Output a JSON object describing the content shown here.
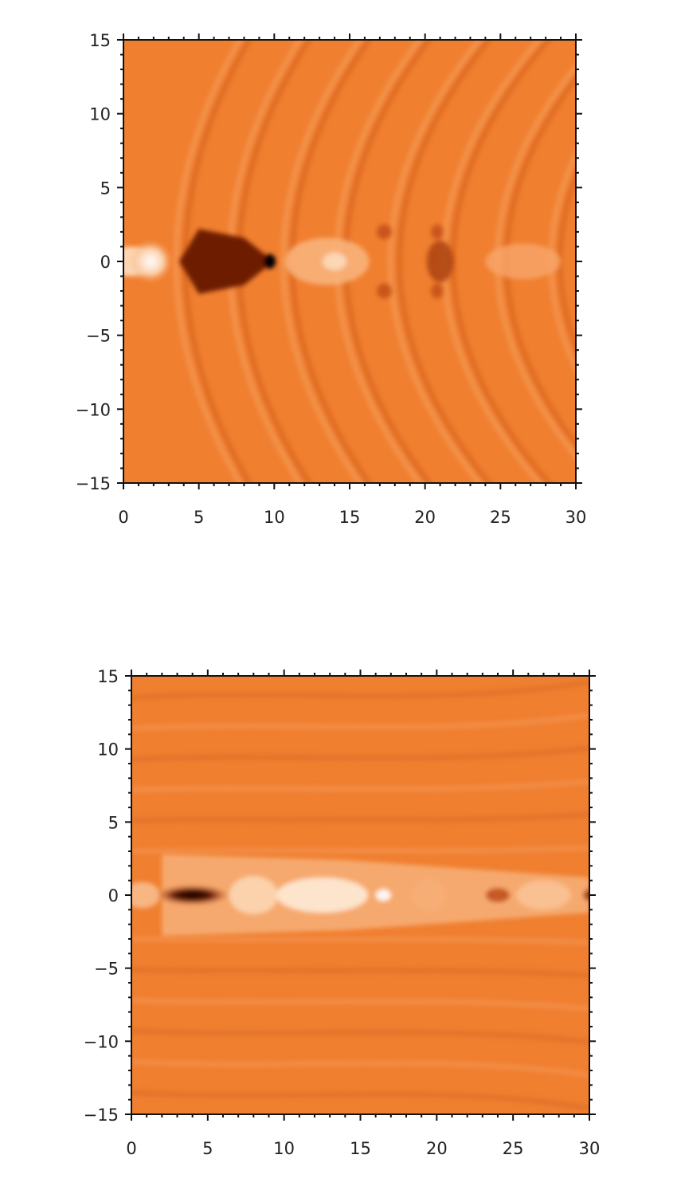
{
  "chart_data": [
    {
      "type": "heatmap",
      "title": "",
      "xlabel": "",
      "ylabel": "",
      "xlim": [
        0,
        30
      ],
      "ylim": [
        -15,
        15
      ],
      "xticks": [
        "0",
        "5",
        "10",
        "15",
        "20",
        "25",
        "30"
      ],
      "yticks": [
        "15",
        "10",
        "5",
        "0",
        "−5",
        "−10",
        "−15"
      ],
      "colormap": {
        "low": "#000000",
        "mid": "#f08030",
        "high": "#ffffff"
      },
      "background_color": "#f07f30",
      "grid": false
    },
    {
      "type": "heatmap",
      "title": "",
      "xlabel": "",
      "ylabel": "",
      "xlim": [
        0,
        30
      ],
      "ylim": [
        -15,
        15
      ],
      "xticks": [
        "0",
        "5",
        "10",
        "15",
        "20",
        "25",
        "30"
      ],
      "yticks": [
        "15",
        "10",
        "5",
        "0",
        "−5",
        "−10",
        "−15"
      ],
      "colormap": {
        "low": "#000000",
        "mid": "#f08030",
        "high": "#ffffff"
      },
      "background_color": "#f07f30",
      "grid": false
    }
  ]
}
